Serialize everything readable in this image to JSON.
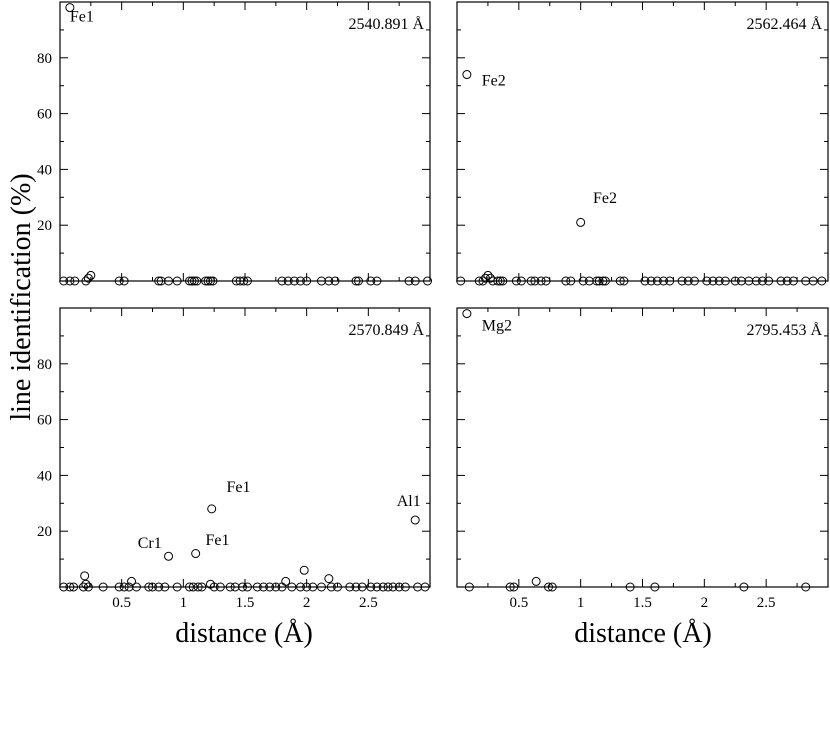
{
  "ylabel": "line identification (%)",
  "xlabel": "distance (Å)",
  "chart_data": [
    {
      "type": "scatter",
      "panel": "top-left",
      "wavelength_label": "2540.891 Å",
      "xlim": [
        0,
        3.0
      ],
      "ylim": [
        0,
        100
      ],
      "xticks": [],
      "yticks": [
        "20",
        "40",
        "60",
        "80"
      ],
      "annotations": [
        {
          "text": "Fe1",
          "x": 0.08,
          "y": 93
        }
      ],
      "points": [
        {
          "x": 0.08,
          "y": 98
        },
        {
          "x": 0.03,
          "y": 0
        },
        {
          "x": 0.08,
          "y": 0
        },
        {
          "x": 0.12,
          "y": 0
        },
        {
          "x": 0.21,
          "y": 0
        },
        {
          "x": 0.23,
          "y": 1
        },
        {
          "x": 0.25,
          "y": 2
        },
        {
          "x": 0.48,
          "y": 0
        },
        {
          "x": 0.52,
          "y": 0
        },
        {
          "x": 0.8,
          "y": 0
        },
        {
          "x": 0.82,
          "y": 0
        },
        {
          "x": 0.88,
          "y": 0
        },
        {
          "x": 0.95,
          "y": 0
        },
        {
          "x": 1.05,
          "y": 0
        },
        {
          "x": 1.07,
          "y": 0
        },
        {
          "x": 1.09,
          "y": 0
        },
        {
          "x": 1.11,
          "y": 0
        },
        {
          "x": 1.18,
          "y": 0
        },
        {
          "x": 1.2,
          "y": 0
        },
        {
          "x": 1.22,
          "y": 0
        },
        {
          "x": 1.24,
          "y": 0
        },
        {
          "x": 1.43,
          "y": 0
        },
        {
          "x": 1.46,
          "y": 0
        },
        {
          "x": 1.49,
          "y": 0
        },
        {
          "x": 1.52,
          "y": 0
        },
        {
          "x": 1.8,
          "y": 0
        },
        {
          "x": 1.85,
          "y": 0
        },
        {
          "x": 1.9,
          "y": 0
        },
        {
          "x": 1.95,
          "y": 0
        },
        {
          "x": 2.0,
          "y": 0
        },
        {
          "x": 2.12,
          "y": 0
        },
        {
          "x": 2.18,
          "y": 0
        },
        {
          "x": 2.23,
          "y": 0
        },
        {
          "x": 2.4,
          "y": 0
        },
        {
          "x": 2.42,
          "y": 0
        },
        {
          "x": 2.52,
          "y": 0
        },
        {
          "x": 2.57,
          "y": 0
        },
        {
          "x": 2.83,
          "y": 0
        },
        {
          "x": 2.88,
          "y": 0
        },
        {
          "x": 2.98,
          "y": 0
        }
      ]
    },
    {
      "type": "scatter",
      "panel": "top-right",
      "wavelength_label": "2562.464 Å",
      "xlim": [
        0,
        3.0
      ],
      "ylim": [
        0,
        100
      ],
      "xticks": [],
      "yticks": [],
      "annotations": [
        {
          "text": "Fe2",
          "x": 0.2,
          "y": 70
        },
        {
          "text": "Fe2",
          "x": 1.1,
          "y": 28
        }
      ],
      "points": [
        {
          "x": 0.08,
          "y": 74
        },
        {
          "x": 1.0,
          "y": 21
        },
        {
          "x": 0.03,
          "y": 0
        },
        {
          "x": 0.18,
          "y": 0
        },
        {
          "x": 0.21,
          "y": 0
        },
        {
          "x": 0.23,
          "y": 1
        },
        {
          "x": 0.25,
          "y": 2
        },
        {
          "x": 0.27,
          "y": 1
        },
        {
          "x": 0.29,
          "y": 0
        },
        {
          "x": 0.33,
          "y": 0
        },
        {
          "x": 0.35,
          "y": 0
        },
        {
          "x": 0.37,
          "y": 0
        },
        {
          "x": 0.48,
          "y": 0
        },
        {
          "x": 0.52,
          "y": 0
        },
        {
          "x": 0.6,
          "y": 0
        },
        {
          "x": 0.63,
          "y": 0
        },
        {
          "x": 0.68,
          "y": 0
        },
        {
          "x": 0.72,
          "y": 0
        },
        {
          "x": 0.88,
          "y": 0
        },
        {
          "x": 0.92,
          "y": 0
        },
        {
          "x": 1.02,
          "y": 0
        },
        {
          "x": 1.07,
          "y": 0
        },
        {
          "x": 1.13,
          "y": 0
        },
        {
          "x": 1.15,
          "y": 0
        },
        {
          "x": 1.18,
          "y": 0
        },
        {
          "x": 1.2,
          "y": 0
        },
        {
          "x": 1.32,
          "y": 0
        },
        {
          "x": 1.35,
          "y": 0
        },
        {
          "x": 1.52,
          "y": 0
        },
        {
          "x": 1.57,
          "y": 0
        },
        {
          "x": 1.62,
          "y": 0
        },
        {
          "x": 1.67,
          "y": 0
        },
        {
          "x": 1.72,
          "y": 0
        },
        {
          "x": 1.82,
          "y": 0
        },
        {
          "x": 1.87,
          "y": 0
        },
        {
          "x": 1.92,
          "y": 0
        },
        {
          "x": 2.02,
          "y": 0
        },
        {
          "x": 2.07,
          "y": 0
        },
        {
          "x": 2.12,
          "y": 0
        },
        {
          "x": 2.17,
          "y": 0
        },
        {
          "x": 2.25,
          "y": 0
        },
        {
          "x": 2.3,
          "y": 0
        },
        {
          "x": 2.36,
          "y": 0
        },
        {
          "x": 2.42,
          "y": 0
        },
        {
          "x": 2.47,
          "y": 0
        },
        {
          "x": 2.52,
          "y": 0
        },
        {
          "x": 2.62,
          "y": 0
        },
        {
          "x": 2.67,
          "y": 0
        },
        {
          "x": 2.72,
          "y": 0
        },
        {
          "x": 2.82,
          "y": 0
        },
        {
          "x": 2.88,
          "y": 0
        },
        {
          "x": 2.95,
          "y": 0
        }
      ]
    },
    {
      "type": "scatter",
      "panel": "bottom-left",
      "wavelength_label": "2570.849 Å",
      "xlim": [
        0,
        3.0
      ],
      "ylim": [
        0,
        100
      ],
      "xticks": [
        "0.5",
        "1",
        "1.5",
        "2",
        "2.5"
      ],
      "yticks": [
        "20",
        "40",
        "60",
        "80"
      ],
      "annotations": [
        {
          "text": "Cr1",
          "x": 0.63,
          "y": 14
        },
        {
          "text": "Fe1",
          "x": 1.18,
          "y": 15
        },
        {
          "text": "Fe1",
          "x": 1.35,
          "y": 34
        },
        {
          "text": "Al1",
          "x": 2.73,
          "y": 29
        }
      ],
      "points": [
        {
          "x": 0.88,
          "y": 11
        },
        {
          "x": 1.1,
          "y": 12
        },
        {
          "x": 1.23,
          "y": 28
        },
        {
          "x": 2.88,
          "y": 24
        },
        {
          "x": 0.2,
          "y": 4
        },
        {
          "x": 1.98,
          "y": 6
        },
        {
          "x": 2.18,
          "y": 3
        },
        {
          "x": 0.58,
          "y": 2
        },
        {
          "x": 1.83,
          "y": 2
        },
        {
          "x": 0.03,
          "y": 0
        },
        {
          "x": 0.08,
          "y": 0
        },
        {
          "x": 0.11,
          "y": 0
        },
        {
          "x": 0.19,
          "y": 0
        },
        {
          "x": 0.21,
          "y": 1
        },
        {
          "x": 0.23,
          "y": 0
        },
        {
          "x": 0.35,
          "y": 0
        },
        {
          "x": 0.48,
          "y": 0
        },
        {
          "x": 0.52,
          "y": 0
        },
        {
          "x": 0.56,
          "y": 0
        },
        {
          "x": 0.62,
          "y": 0
        },
        {
          "x": 0.72,
          "y": 0
        },
        {
          "x": 0.75,
          "y": 0
        },
        {
          "x": 0.8,
          "y": 0
        },
        {
          "x": 0.85,
          "y": 0
        },
        {
          "x": 0.95,
          "y": 0
        },
        {
          "x": 1.05,
          "y": 0
        },
        {
          "x": 1.08,
          "y": 0
        },
        {
          "x": 1.12,
          "y": 0
        },
        {
          "x": 1.15,
          "y": 0
        },
        {
          "x": 1.22,
          "y": 1
        },
        {
          "x": 1.25,
          "y": 0
        },
        {
          "x": 1.3,
          "y": 0
        },
        {
          "x": 1.38,
          "y": 0
        },
        {
          "x": 1.42,
          "y": 0
        },
        {
          "x": 1.48,
          "y": 0
        },
        {
          "x": 1.52,
          "y": 0
        },
        {
          "x": 1.6,
          "y": 0
        },
        {
          "x": 1.65,
          "y": 0
        },
        {
          "x": 1.7,
          "y": 0
        },
        {
          "x": 1.75,
          "y": 0
        },
        {
          "x": 1.8,
          "y": 0
        },
        {
          "x": 1.88,
          "y": 0
        },
        {
          "x": 1.95,
          "y": 0
        },
        {
          "x": 2.0,
          "y": 0
        },
        {
          "x": 2.05,
          "y": 0
        },
        {
          "x": 2.12,
          "y": 0
        },
        {
          "x": 2.2,
          "y": 0
        },
        {
          "x": 2.25,
          "y": 0
        },
        {
          "x": 2.35,
          "y": 0
        },
        {
          "x": 2.4,
          "y": 0
        },
        {
          "x": 2.45,
          "y": 0
        },
        {
          "x": 2.52,
          "y": 0
        },
        {
          "x": 2.57,
          "y": 0
        },
        {
          "x": 2.62,
          "y": 0
        },
        {
          "x": 2.66,
          "y": 0
        },
        {
          "x": 2.7,
          "y": 0
        },
        {
          "x": 2.75,
          "y": 0
        },
        {
          "x": 2.8,
          "y": 0
        },
        {
          "x": 2.9,
          "y": 0
        },
        {
          "x": 2.96,
          "y": 0
        }
      ]
    },
    {
      "type": "scatter",
      "panel": "bottom-right",
      "wavelength_label": "2795.453 Å",
      "xlim": [
        0,
        3.0
      ],
      "ylim": [
        0,
        100
      ],
      "xticks": [
        "0.5",
        "1",
        "1.5",
        "2",
        "2.5"
      ],
      "yticks": [],
      "annotations": [
        {
          "text": "Mg2",
          "x": 0.2,
          "y": 92
        }
      ],
      "points": [
        {
          "x": 0.08,
          "y": 98
        },
        {
          "x": 0.1,
          "y": 0
        },
        {
          "x": 0.43,
          "y": 0
        },
        {
          "x": 0.46,
          "y": 0
        },
        {
          "x": 0.64,
          "y": 2
        },
        {
          "x": 0.74,
          "y": 0
        },
        {
          "x": 0.77,
          "y": 0
        },
        {
          "x": 1.4,
          "y": 0
        },
        {
          "x": 1.6,
          "y": 0
        },
        {
          "x": 2.32,
          "y": 0
        },
        {
          "x": 2.82,
          "y": 0
        }
      ]
    }
  ]
}
